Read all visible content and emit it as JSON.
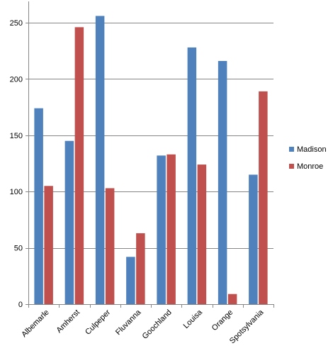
{
  "chart_data": {
    "type": "bar",
    "title": "",
    "xlabel": "",
    "ylabel": "",
    "ylim": [
      0,
      250
    ],
    "y_ticks": [
      0,
      50,
      100,
      150,
      200,
      250
    ],
    "grid": true,
    "legend_position": "right",
    "categories": [
      "Albemarle",
      "Amherst",
      "Culpeper",
      "Fluvanna",
      "Goochland",
      "Louisa",
      "Orange",
      "Spotsylvania"
    ],
    "series": [
      {
        "name": "Madison",
        "color": "#4f81bd",
        "values": [
          174,
          145,
          256,
          42,
          132,
          228,
          216,
          115
        ]
      },
      {
        "name": "Monroe",
        "color": "#c0504d",
        "values": [
          105,
          246,
          103,
          63,
          133,
          124,
          9,
          189
        ]
      }
    ]
  }
}
